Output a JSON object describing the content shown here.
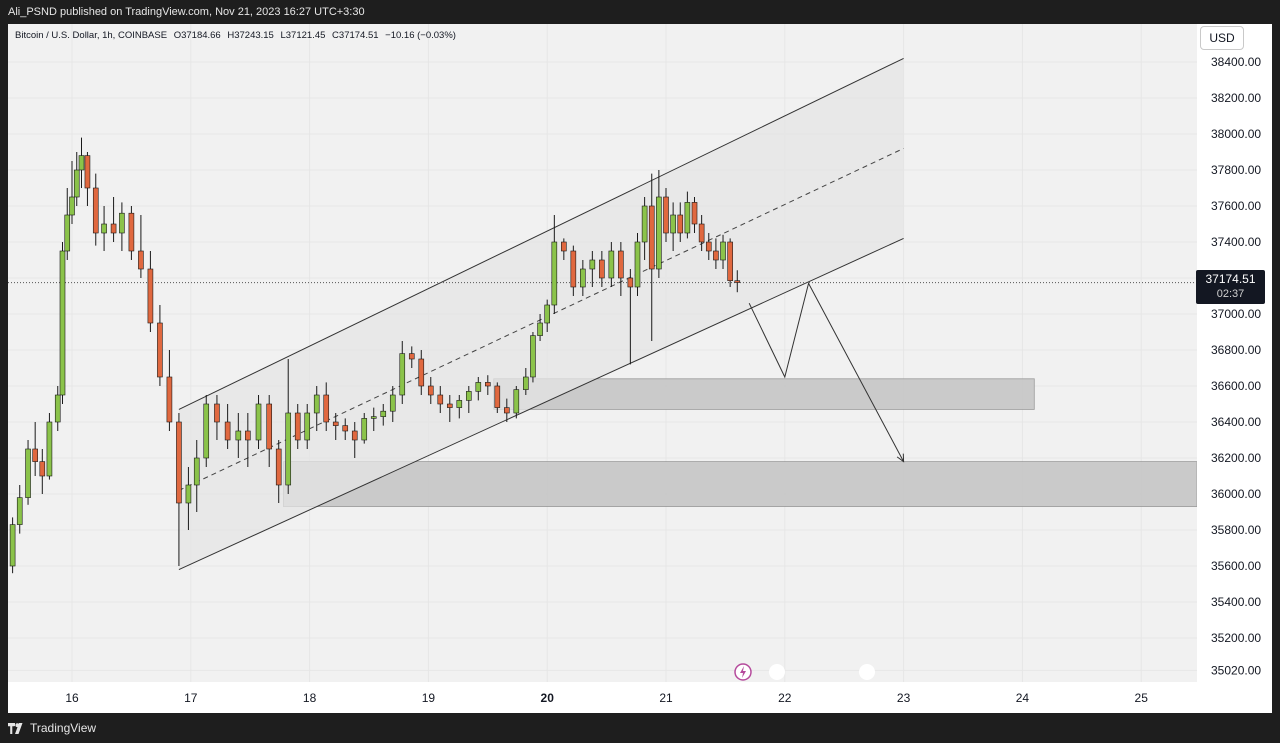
{
  "header": {
    "publisher_line": "Ali_PSND published on TradingView.com, Nov 21, 2023 16:27 UTC+3:30"
  },
  "legend": {
    "symbol": "Bitcoin / U.S. Dollar, 1h, COINBASE",
    "open": "O37184.66",
    "high": "H37243.15",
    "low": "L37121.45",
    "close": "C37174.51",
    "change": "−10.16 (−0.03%)"
  },
  "price_axis": {
    "currency": "USD",
    "current_price": "37174.51",
    "countdown": "02:37"
  },
  "footer": {
    "brand": "TradingView"
  },
  "colors": {
    "up": "#8bc34a",
    "down": "#e0683f",
    "wick": "#1a1a1a",
    "channel_fill": "#e4e4e4",
    "zone_fill": "#c3c3c3"
  },
  "icons": [
    "tradingview-logo-icon",
    "lightning-event-icon",
    "event-dot-icon"
  ],
  "chart_data": {
    "type": "candlestick",
    "title": "",
    "ylim": [
      35020,
      38550
    ],
    "yticks": [
      "38400.00",
      "38200.00",
      "38000.00",
      "37800.00",
      "37600.00",
      "37400.00",
      "37200.00",
      "37000.00",
      "36800.00",
      "36600.00",
      "36400.00",
      "36200.00",
      "36000.00",
      "35800.00",
      "35600.00",
      "35400.00",
      "35200.00",
      "35020.00"
    ],
    "xticks": [
      {
        "label": "16",
        "bold": false
      },
      {
        "label": "17",
        "bold": false
      },
      {
        "label": "18",
        "bold": false
      },
      {
        "label": "19",
        "bold": false
      },
      {
        "label": "20",
        "bold": true
      },
      {
        "label": "21",
        "bold": false
      },
      {
        "label": "22",
        "bold": false
      },
      {
        "label": "23",
        "bold": false
      },
      {
        "label": "24",
        "bold": false
      },
      {
        "label": "25",
        "bold": false
      }
    ],
    "x_unit": "days (Nov 2023, hourly bars)",
    "candles": [
      {
        "t": 15.5,
        "o": 35600,
        "h": 35870,
        "l": 35560,
        "c": 35830
      },
      {
        "t": 15.56,
        "o": 35830,
        "h": 36050,
        "l": 35780,
        "c": 35980
      },
      {
        "t": 15.63,
        "o": 35980,
        "h": 36300,
        "l": 35940,
        "c": 36250
      },
      {
        "t": 15.69,
        "o": 36250,
        "h": 36400,
        "l": 36100,
        "c": 36180
      },
      {
        "t": 15.75,
        "o": 36180,
        "h": 36250,
        "l": 36000,
        "c": 36100
      },
      {
        "t": 15.81,
        "o": 36100,
        "h": 36450,
        "l": 36080,
        "c": 36400
      },
      {
        "t": 15.88,
        "o": 36400,
        "h": 36600,
        "l": 36350,
        "c": 36550
      },
      {
        "t": 15.92,
        "o": 36550,
        "h": 37400,
        "l": 36500,
        "c": 37350
      },
      {
        "t": 15.96,
        "o": 37350,
        "h": 37700,
        "l": 37300,
        "c": 37550
      },
      {
        "t": 16.0,
        "o": 37550,
        "h": 37850,
        "l": 37500,
        "c": 37650
      },
      {
        "t": 16.04,
        "o": 37650,
        "h": 37900,
        "l": 37600,
        "c": 37800
      },
      {
        "t": 16.08,
        "o": 37800,
        "h": 37980,
        "l": 37700,
        "c": 37880
      },
      {
        "t": 16.13,
        "o": 37880,
        "h": 37900,
        "l": 37600,
        "c": 37700
      },
      {
        "t": 16.2,
        "o": 37700,
        "h": 37780,
        "l": 37380,
        "c": 37450
      },
      {
        "t": 16.27,
        "o": 37450,
        "h": 37600,
        "l": 37350,
        "c": 37500
      },
      {
        "t": 16.35,
        "o": 37500,
        "h": 37650,
        "l": 37400,
        "c": 37450
      },
      {
        "t": 16.42,
        "o": 37450,
        "h": 37620,
        "l": 37350,
        "c": 37560
      },
      {
        "t": 16.5,
        "o": 37560,
        "h": 37600,
        "l": 37300,
        "c": 37350
      },
      {
        "t": 16.58,
        "o": 37350,
        "h": 37550,
        "l": 37200,
        "c": 37250
      },
      {
        "t": 16.66,
        "o": 37250,
        "h": 37350,
        "l": 36900,
        "c": 36950
      },
      {
        "t": 16.74,
        "o": 36950,
        "h": 37050,
        "l": 36600,
        "c": 36650
      },
      {
        "t": 16.82,
        "o": 36650,
        "h": 36800,
        "l": 36350,
        "c": 36400
      },
      {
        "t": 16.9,
        "o": 36400,
        "h": 36450,
        "l": 35600,
        "c": 35950
      },
      {
        "t": 16.98,
        "o": 35950,
        "h": 36150,
        "l": 35800,
        "c": 36050
      },
      {
        "t": 17.05,
        "o": 36050,
        "h": 36300,
        "l": 35900,
        "c": 36200
      },
      {
        "t": 17.13,
        "o": 36200,
        "h": 36550,
        "l": 36150,
        "c": 36500
      },
      {
        "t": 17.22,
        "o": 36500,
        "h": 36550,
        "l": 36300,
        "c": 36400
      },
      {
        "t": 17.31,
        "o": 36400,
        "h": 36500,
        "l": 36250,
        "c": 36300
      },
      {
        "t": 17.4,
        "o": 36300,
        "h": 36450,
        "l": 36200,
        "c": 36350
      },
      {
        "t": 17.48,
        "o": 36350,
        "h": 36450,
        "l": 36150,
        "c": 36300
      },
      {
        "t": 17.57,
        "o": 36300,
        "h": 36550,
        "l": 36250,
        "c": 36500
      },
      {
        "t": 17.66,
        "o": 36500,
        "h": 36550,
        "l": 36150,
        "c": 36250
      },
      {
        "t": 17.74,
        "o": 36250,
        "h": 36300,
        "l": 35950,
        "c": 36050
      },
      {
        "t": 17.82,
        "o": 36050,
        "h": 36750,
        "l": 36000,
        "c": 36450
      },
      {
        "t": 17.9,
        "o": 36450,
        "h": 36500,
        "l": 36250,
        "c": 36300
      },
      {
        "t": 17.98,
        "o": 36300,
        "h": 36500,
        "l": 36250,
        "c": 36450
      },
      {
        "t": 18.06,
        "o": 36450,
        "h": 36600,
        "l": 36350,
        "c": 36550
      },
      {
        "t": 18.14,
        "o": 36550,
        "h": 36620,
        "l": 36350,
        "c": 36400
      },
      {
        "t": 18.22,
        "o": 36400,
        "h": 36450,
        "l": 36300,
        "c": 36380
      },
      {
        "t": 18.3,
        "o": 36380,
        "h": 36420,
        "l": 36300,
        "c": 36350
      },
      {
        "t": 18.38,
        "o": 36350,
        "h": 36400,
        "l": 36200,
        "c": 36300
      },
      {
        "t": 18.46,
        "o": 36300,
        "h": 36450,
        "l": 36280,
        "c": 36420
      },
      {
        "t": 18.54,
        "o": 36420,
        "h": 36480,
        "l": 36350,
        "c": 36430
      },
      {
        "t": 18.62,
        "o": 36430,
        "h": 36500,
        "l": 36380,
        "c": 36460
      },
      {
        "t": 18.7,
        "o": 36460,
        "h": 36600,
        "l": 36400,
        "c": 36550
      },
      {
        "t": 18.78,
        "o": 36550,
        "h": 36850,
        "l": 36500,
        "c": 36780
      },
      {
        "t": 18.86,
        "o": 36780,
        "h": 36820,
        "l": 36700,
        "c": 36750
      },
      {
        "t": 18.94,
        "o": 36750,
        "h": 36800,
        "l": 36550,
        "c": 36600
      },
      {
        "t": 19.02,
        "o": 36600,
        "h": 36650,
        "l": 36500,
        "c": 36550
      },
      {
        "t": 19.1,
        "o": 36550,
        "h": 36600,
        "l": 36450,
        "c": 36500
      },
      {
        "t": 19.18,
        "o": 36500,
        "h": 36550,
        "l": 36400,
        "c": 36480
      },
      {
        "t": 19.26,
        "o": 36480,
        "h": 36550,
        "l": 36420,
        "c": 36520
      },
      {
        "t": 19.34,
        "o": 36520,
        "h": 36600,
        "l": 36450,
        "c": 36570
      },
      {
        "t": 19.42,
        "o": 36570,
        "h": 36650,
        "l": 36520,
        "c": 36620
      },
      {
        "t": 19.5,
        "o": 36620,
        "h": 36660,
        "l": 36550,
        "c": 36600
      },
      {
        "t": 19.58,
        "o": 36600,
        "h": 36620,
        "l": 36450,
        "c": 36480
      },
      {
        "t": 19.66,
        "o": 36480,
        "h": 36530,
        "l": 36400,
        "c": 36450
      },
      {
        "t": 19.74,
        "o": 36450,
        "h": 36600,
        "l": 36420,
        "c": 36580
      },
      {
        "t": 19.82,
        "o": 36580,
        "h": 36700,
        "l": 36550,
        "c": 36650
      },
      {
        "t": 19.88,
        "o": 36650,
        "h": 36900,
        "l": 36620,
        "c": 36880
      },
      {
        "t": 19.94,
        "o": 36880,
        "h": 37000,
        "l": 36850,
        "c": 36950
      },
      {
        "t": 20.0,
        "o": 36950,
        "h": 37080,
        "l": 36900,
        "c": 37050
      },
      {
        "t": 20.06,
        "o": 37050,
        "h": 37550,
        "l": 37000,
        "c": 37400
      },
      {
        "t": 20.14,
        "o": 37400,
        "h": 37420,
        "l": 37300,
        "c": 37350
      },
      {
        "t": 20.22,
        "o": 37350,
        "h": 37380,
        "l": 37100,
        "c": 37150
      },
      {
        "t": 20.3,
        "o": 37150,
        "h": 37300,
        "l": 37100,
        "c": 37250
      },
      {
        "t": 20.38,
        "o": 37250,
        "h": 37350,
        "l": 37150,
        "c": 37300
      },
      {
        "t": 20.46,
        "o": 37300,
        "h": 37350,
        "l": 37150,
        "c": 37200
      },
      {
        "t": 20.54,
        "o": 37200,
        "h": 37400,
        "l": 37150,
        "c": 37350
      },
      {
        "t": 20.62,
        "o": 37350,
        "h": 37400,
        "l": 37100,
        "c": 37200
      },
      {
        "t": 20.7,
        "o": 37200,
        "h": 37250,
        "l": 36720,
        "c": 37150
      },
      {
        "t": 20.76,
        "o": 37150,
        "h": 37450,
        "l": 37100,
        "c": 37400
      },
      {
        "t": 20.82,
        "o": 37400,
        "h": 37650,
        "l": 37300,
        "c": 37600
      },
      {
        "t": 20.88,
        "o": 37600,
        "h": 37780,
        "l": 36850,
        "c": 37250
      },
      {
        "t": 20.94,
        "o": 37250,
        "h": 37800,
        "l": 37200,
        "c": 37650
      },
      {
        "t": 21.0,
        "o": 37650,
        "h": 37700,
        "l": 37400,
        "c": 37450
      },
      {
        "t": 21.06,
        "o": 37450,
        "h": 37620,
        "l": 37350,
        "c": 37550
      },
      {
        "t": 21.12,
        "o": 37550,
        "h": 37620,
        "l": 37400,
        "c": 37450
      },
      {
        "t": 21.18,
        "o": 37450,
        "h": 37680,
        "l": 37420,
        "c": 37620
      },
      {
        "t": 21.24,
        "o": 37620,
        "h": 37650,
        "l": 37450,
        "c": 37500
      },
      {
        "t": 21.3,
        "o": 37500,
        "h": 37550,
        "l": 37350,
        "c": 37400
      },
      {
        "t": 21.36,
        "o": 37400,
        "h": 37450,
        "l": 37300,
        "c": 37350
      },
      {
        "t": 21.42,
        "o": 37350,
        "h": 37420,
        "l": 37250,
        "c": 37300
      },
      {
        "t": 21.48,
        "o": 37300,
        "h": 37440,
        "l": 37250,
        "c": 37400
      },
      {
        "t": 21.54,
        "o": 37400,
        "h": 37420,
        "l": 37150,
        "c": 37185
      },
      {
        "t": 21.6,
        "o": 37185,
        "h": 37243,
        "l": 37121,
        "c": 37175
      }
    ],
    "channel": {
      "lower": [
        {
          "t": 16.9,
          "p": 35580
        },
        {
          "t": 23.0,
          "p": 37420
        }
      ],
      "upper": [
        {
          "t": 16.9,
          "p": 36470
        },
        {
          "t": 23.0,
          "p": 38420
        }
      ],
      "mid": [
        {
          "t": 16.9,
          "p": 36020
        },
        {
          "t": 23.0,
          "p": 37920
        }
      ]
    },
    "zones": [
      {
        "t1": 19.55,
        "t2": 24.1,
        "p1": 36470,
        "p2": 36640
      },
      {
        "t1": 17.78,
        "t2": 25.6,
        "p1": 35930,
        "p2": 36180
      }
    ],
    "projection": [
      {
        "t": 21.7,
        "p": 37060
      },
      {
        "t": 22.0,
        "p": 36650
      },
      {
        "t": 22.2,
        "p": 37170
      },
      {
        "t": 23.0,
        "p": 36180
      }
    ],
    "current_price_line": 37174.51,
    "grid": true
  }
}
